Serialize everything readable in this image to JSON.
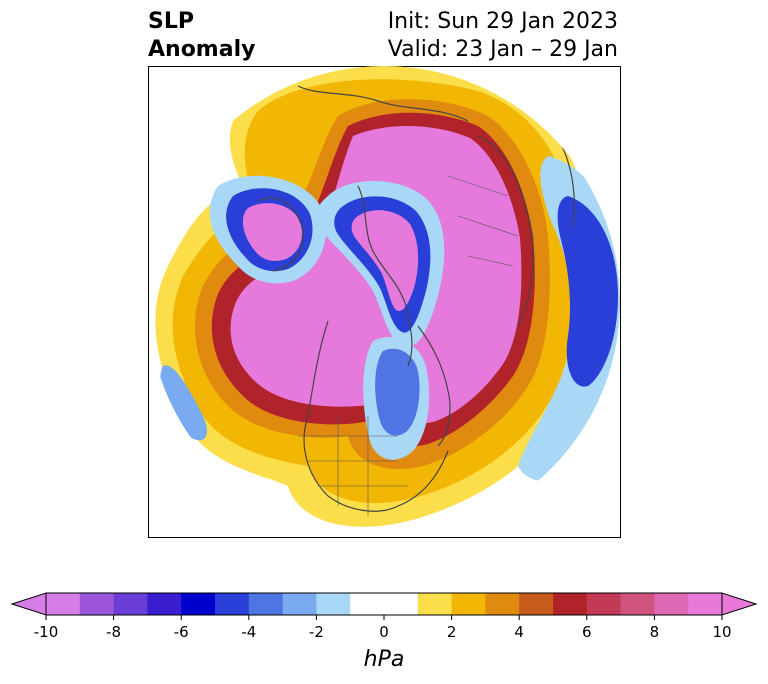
{
  "title": {
    "left_line1": "SLP",
    "left_line2": "Anomaly",
    "right_line1": "Init: Sun 29 Jan 2023",
    "right_line2": "Valid: 23 Jan – 29 Jan"
  },
  "colorbar": {
    "unit": "hPa",
    "tick_labels": [
      "-10",
      "-8",
      "-6",
      "-4",
      "-2",
      "0",
      "2",
      "4",
      "6",
      "8",
      "10"
    ],
    "min": -10,
    "max": 10,
    "colors": [
      "#d77de6",
      "#9d55dc",
      "#6a3dd6",
      "#3a1fd0",
      "#0000cd",
      "#2a3ed8",
      "#4f74e3",
      "#7aaaf0",
      "#a9d8f7",
      "#ffffff",
      "#ffffff",
      "#fbde4a",
      "#f2b705",
      "#e08a10",
      "#c65b1c",
      "#b0232a",
      "#c23a55",
      "#d05380",
      "#dc69b5",
      "#e879d9"
    ],
    "extend": "both"
  },
  "map": {
    "projection": "north polar stereographic",
    "palette": {
      "land_outline": "#444444",
      "strong_positive": "#e679dc",
      "strong_negative": "#2a3ed8"
    }
  }
}
